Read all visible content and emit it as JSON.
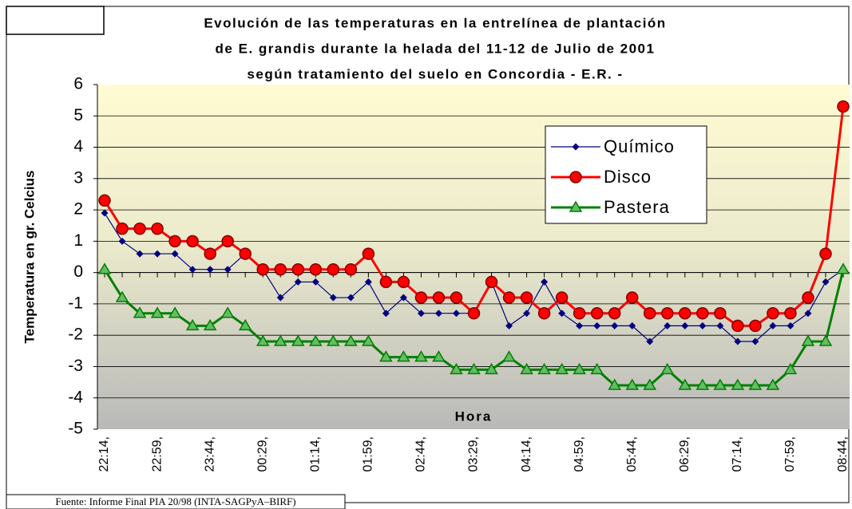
{
  "chart_data": {
    "type": "line",
    "title": [
      "Evolución de las temperaturas en la entrelínea de plantación",
      "de E. grandis durante la helada del 11-12 de Julio de 2001",
      "según tratamiento del suelo en Concordia - E.R. -"
    ],
    "x_label": "Hora",
    "y_label": "Temperatura en gr. Celcius",
    "source": "Fuente: Informe Final PIA 20/98 (INTA-SAGPyA–BIRF)",
    "categories": [
      "22:14,",
      null,
      null,
      "22:59,",
      null,
      null,
      "23:44,",
      null,
      null,
      "00:29,",
      null,
      null,
      "01:14,",
      null,
      null,
      "01:59,",
      null,
      null,
      "02:44,",
      null,
      null,
      "03:29,",
      null,
      null,
      "04:14,",
      null,
      null,
      "04:59,",
      null,
      null,
      "05:44,",
      null,
      null,
      "06:29,",
      null,
      null,
      "07:14,",
      null,
      null,
      "07:59,",
      null,
      null,
      "08:44,"
    ],
    "series": [
      {
        "name": "Químico",
        "color": "#000080",
        "marker": "diamond",
        "values": [
          1.9,
          1.0,
          0.6,
          0.6,
          0.6,
          0.1,
          0.1,
          0.1,
          0.6,
          0.1,
          -0.8,
          -0.3,
          -0.3,
          -0.8,
          -0.8,
          -0.3,
          -1.3,
          -0.8,
          -1.3,
          -1.3,
          -1.3,
          -1.3,
          -0.3,
          -1.7,
          -1.3,
          -0.3,
          -1.3,
          -1.7,
          -1.7,
          -1.7,
          -1.7,
          -2.2,
          -1.7,
          -1.7,
          -1.7,
          -1.7,
          -2.2,
          -2.2,
          -1.7,
          -1.7,
          -1.3,
          -0.3,
          0.1
        ]
      },
      {
        "name": "Disco",
        "color": "#ff0000",
        "marker": "circle",
        "values": [
          2.3,
          1.4,
          1.4,
          1.4,
          1.0,
          1.0,
          0.6,
          1.0,
          0.6,
          0.1,
          0.1,
          0.1,
          0.1,
          0.1,
          0.1,
          0.6,
          -0.3,
          -0.3,
          -0.8,
          -0.8,
          -0.8,
          -1.3,
          -0.3,
          -0.8,
          -0.8,
          -1.3,
          -0.8,
          -1.3,
          -1.3,
          -1.3,
          -0.8,
          -1.3,
          -1.3,
          -1.3,
          -1.3,
          -1.3,
          -1.7,
          -1.7,
          -1.3,
          -1.3,
          -0.8,
          0.6,
          5.3
        ]
      },
      {
        "name": "Pastera",
        "color": "#008000",
        "marker": "triangle",
        "values": [
          0.1,
          -0.8,
          -1.3,
          -1.3,
          -1.3,
          -1.7,
          -1.7,
          -1.3,
          -1.7,
          -2.2,
          -2.2,
          -2.2,
          -2.2,
          -2.2,
          -2.2,
          -2.2,
          -2.7,
          -2.7,
          -2.7,
          -2.7,
          -3.1,
          -3.1,
          -3.1,
          -2.7,
          -3.1,
          -3.1,
          -3.1,
          -3.1,
          -3.1,
          -3.6,
          -3.6,
          -3.6,
          -3.1,
          -3.6,
          -3.6,
          -3.6,
          -3.6,
          -3.6,
          -3.6,
          -3.1,
          -2.2,
          -2.2,
          0.1
        ]
      }
    ],
    "ylim": [
      -5,
      6
    ],
    "yticks": [
      -5,
      -4,
      -3,
      -2,
      -1,
      0,
      1,
      2,
      3,
      4,
      5,
      6
    ],
    "grid": true
  }
}
